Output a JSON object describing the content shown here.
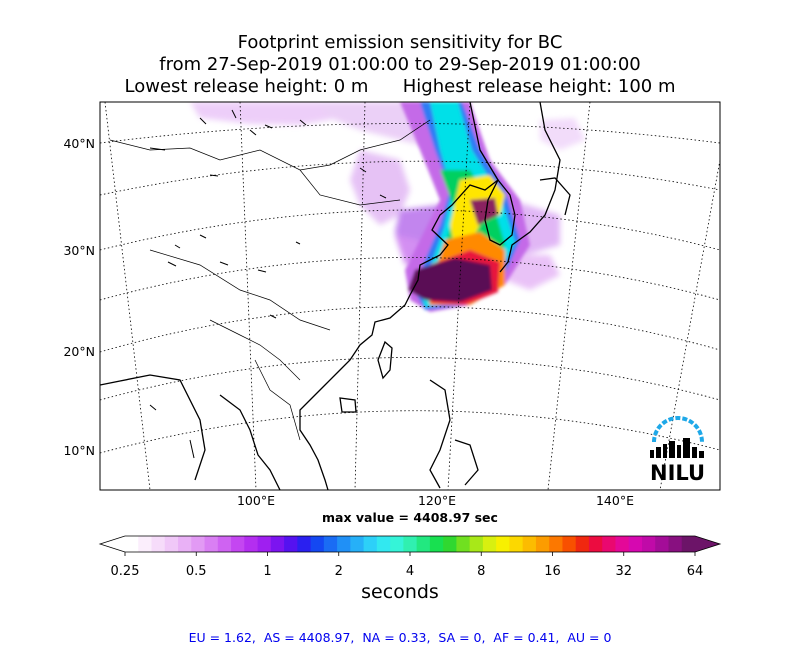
{
  "title": {
    "line1": "Footprint emission sensitivity for BC",
    "line2": "from 27-Sep-2019 01:00:00 to 29-Sep-2019 01:00:00",
    "line3": "Lowest release height: 0 m      Highest release height: 100 m"
  },
  "map": {
    "lat_ticks": [
      "40°N",
      "30°N",
      "20°N",
      "10°N"
    ],
    "lon_ticks": [
      "100°E",
      "120°E",
      "140°E"
    ],
    "max_value_label": "max value = 4408.97 sec",
    "logo_text": "NILU",
    "colors": {
      "plume_core": "#5a0a55",
      "plume_red": "#e8143c",
      "plume_cyan": "#00e0e8",
      "plume_green": "#00d060",
      "plume_yellow": "#ffe600",
      "plume_violet": "#c46ae8",
      "logo_arc": "#1ea8e8"
    }
  },
  "colorbar": {
    "tick_labels": [
      "0.25",
      "0.5",
      "1",
      "2",
      "4",
      "8",
      "16",
      "32",
      "64"
    ],
    "units_label": "seconds",
    "colors": [
      "#ffffff",
      "#fbeefc",
      "#f6dcfa",
      "#f0c8f8",
      "#e9b1f6",
      "#e29af4",
      "#d97ff3",
      "#cf63f2",
      "#c446f1",
      "#b42ef0",
      "#9f1ff0",
      "#7c14f0",
      "#5512f0",
      "#2a20f0",
      "#1448f2",
      "#1a6cf4",
      "#2090f6",
      "#26b0f8",
      "#2dd0f8",
      "#32e8f0",
      "#35f4d8",
      "#30f0b0",
      "#22e880",
      "#18e050",
      "#30d830",
      "#70e020",
      "#a8e818",
      "#d8f010",
      "#f8f000",
      "#fcd800",
      "#fcbc00",
      "#fc9c00",
      "#fc7800",
      "#f85000",
      "#f02810",
      "#ec0c40",
      "#ea0870",
      "#e40898",
      "#d608b0",
      "#c00aa8",
      "#a40c98",
      "#881080",
      "#6c1468"
    ]
  },
  "stats": "EU = 1.62,  AS = 4408.97,  NA = 0.33,  SA = 0,  AF = 0.41,  AU = 0"
}
